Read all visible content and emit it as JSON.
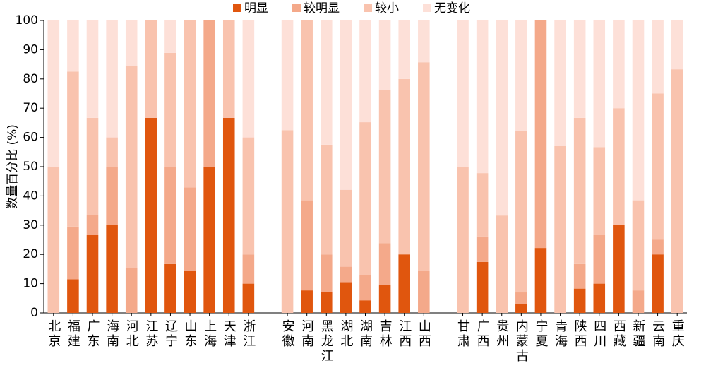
{
  "chart_data": {
    "type": "stacked-bar",
    "y_label": "数量百分比 (%)",
    "categories": [
      "北京",
      "福建",
      "广东",
      "海南",
      "河北",
      "江苏",
      "辽宁",
      "山东",
      "上海",
      "天津",
      "浙江",
      null,
      "安徽",
      "河南",
      "黑龙江",
      "湖北",
      "湖南",
      "吉林",
      "江西",
      "山西",
      null,
      "甘肃",
      "广西",
      "贵州",
      "内蒙古",
      "宁夏",
      "青海",
      "陕西",
      "四川",
      "西藏",
      "新疆",
      "云南",
      "重庆"
    ],
    "series": [
      {
        "name": "明显",
        "color": "#e0560e",
        "values": [
          0,
          11.5,
          26.7,
          30,
          0,
          66.7,
          16.7,
          14.3,
          50,
          66.7,
          10,
          null,
          0,
          7.7,
          7.1,
          10.5,
          4.3,
          9.5,
          20,
          0,
          null,
          0,
          17.4,
          0,
          3.1,
          22.2,
          0,
          8.3,
          10,
          30,
          0,
          20,
          0
        ]
      },
      {
        "name": "较明显",
        "color": "#f4a98a",
        "values": [
          0,
          18,
          6.7,
          20,
          15.4,
          0,
          33.3,
          28.6,
          50,
          0,
          10,
          null,
          0,
          30.8,
          12.9,
          5.3,
          8.7,
          14.3,
          0,
          14.3,
          null,
          0,
          8.7,
          0,
          3.9,
          77.8,
          0,
          8.4,
          16.7,
          0,
          7.7,
          5,
          0
        ]
      },
      {
        "name": "较小",
        "color": "#f9c3ae",
        "values": [
          50,
          53,
          33.3,
          10,
          69.2,
          33.3,
          38.9,
          57.1,
          0,
          33.3,
          40,
          null,
          62.5,
          61.5,
          37.5,
          26.3,
          52.2,
          52.4,
          60,
          71.4,
          null,
          50,
          21.7,
          33.3,
          55.3,
          0,
          57.1,
          50,
          30,
          40,
          30.8,
          50,
          83.3
        ]
      },
      {
        "name": "无变化",
        "color": "#fde0d8",
        "values": [
          50,
          17.5,
          33.3,
          40,
          15.4,
          0,
          11.1,
          0,
          0,
          0,
          40,
          null,
          37.5,
          0,
          42.5,
          57.9,
          34.8,
          23.8,
          20,
          14.3,
          null,
          50,
          52.2,
          66.7,
          37.7,
          0,
          42.9,
          33.3,
          43.3,
          30,
          61.5,
          25,
          16.7
        ]
      }
    ],
    "ylim": [
      0,
      100
    ],
    "yticks": [
      0,
      10,
      20,
      30,
      40,
      50,
      60,
      70,
      80,
      90,
      100
    ],
    "grid": false
  }
}
